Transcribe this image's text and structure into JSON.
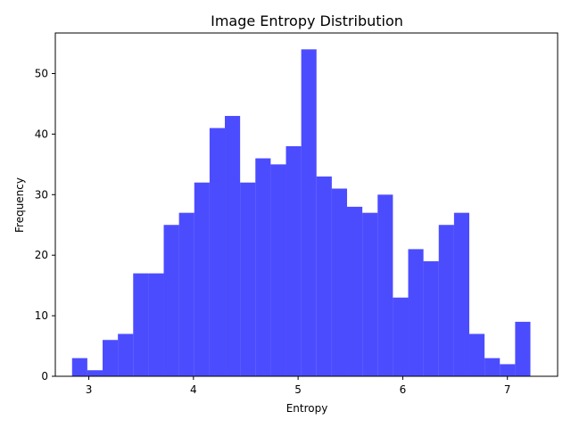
{
  "chart_data": {
    "type": "bar",
    "title": "Image Entropy Distribution",
    "xlabel": "Entropy",
    "ylabel": "Frequency",
    "bar_color": "#0000ff",
    "bar_opacity": 0.7,
    "xlim": [
      2.68,
      7.48
    ],
    "ylim": [
      0,
      56.7
    ],
    "xticks": [
      3,
      4,
      5,
      6,
      7
    ],
    "yticks": [
      0,
      10,
      20,
      30,
      40,
      50
    ],
    "grid": false,
    "legend": "none",
    "bin_edges": [
      2.84,
      2.986,
      3.132,
      3.278,
      3.424,
      3.57,
      3.716,
      3.862,
      4.008,
      4.154,
      4.3,
      4.446,
      4.592,
      4.738,
      4.884,
      5.03,
      5.176,
      5.322,
      5.468,
      5.614,
      5.76,
      5.906,
      6.052,
      6.198,
      6.344,
      6.49,
      6.636,
      6.782,
      6.928,
      7.074,
      7.22
    ],
    "values": [
      3,
      1,
      6,
      7,
      17,
      17,
      25,
      27,
      32,
      41,
      43,
      32,
      36,
      35,
      38,
      54,
      33,
      31,
      28,
      27,
      30,
      13,
      21,
      19,
      25,
      27,
      7,
      3,
      2,
      9
    ]
  }
}
